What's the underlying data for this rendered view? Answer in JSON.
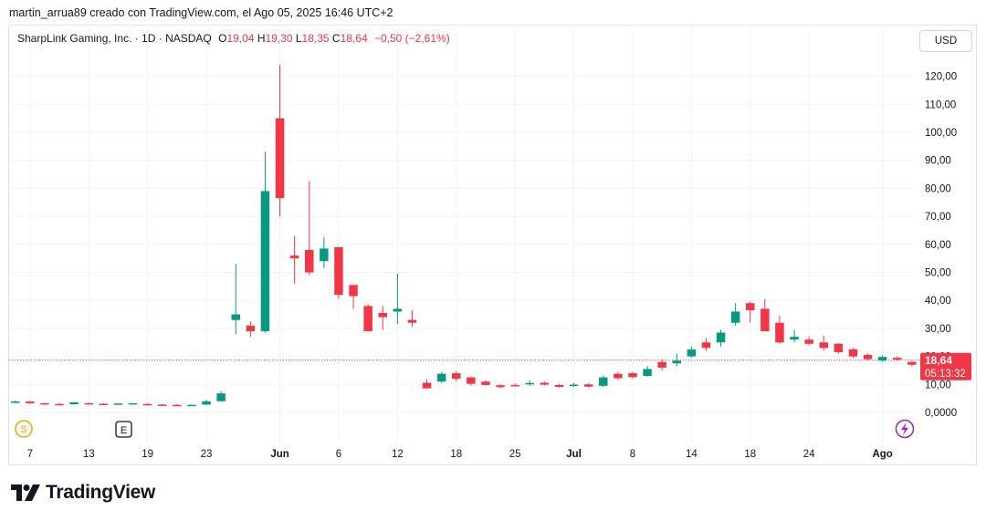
{
  "header": {
    "credit": "martin_arrua89 creado con TradingView.com, el Ago 05, 2025 16:46 UTC+2"
  },
  "legend": {
    "symbol": "SharpLink Gaming, Inc. · 1D · NASDAQ",
    "o_label": "O",
    "o_value": "19,04",
    "h_label": "H",
    "h_value": "19,30",
    "l_label": "L",
    "l_value": "18,35",
    "c_label": "C",
    "c_value": "18,64",
    "change": "−0,50 (−2,61%)"
  },
  "currency": "USD",
  "price_tag": {
    "price": "18,64",
    "countdown": "05:13:32"
  },
  "markers": {
    "s": "S",
    "e": "E"
  },
  "brand": {
    "name": "TradingView"
  },
  "colors": {
    "up": "#089981",
    "down": "#f23645",
    "grid": "#f0f3fa",
    "text": "#131722"
  },
  "icons": {
    "lightning": "lightning-icon",
    "logo": "tradingview-logo-icon"
  },
  "chart_data": {
    "type": "candlestick",
    "title": "SharpLink Gaming, Inc. · 1D · NASDAQ",
    "ylim": [
      0,
      125
    ],
    "y_ticks": [
      "0,0000",
      "10,00",
      "20,00",
      "30,00",
      "40,00",
      "50,00",
      "60,00",
      "70,00",
      "80,00",
      "90,00",
      "100,00",
      "110,00",
      "120,00"
    ],
    "x_ticks": [
      "7",
      "13",
      "19",
      "23",
      "Jun",
      "6",
      "12",
      "18",
      "25",
      "Jul",
      "8",
      "14",
      "18",
      "24",
      "Ago"
    ],
    "last_price": 18.64,
    "grid": true,
    "candles": [
      {
        "date": "2025-05-06",
        "o": 3.6,
        "h": 4.2,
        "l": 3.3,
        "c": 3.9
      },
      {
        "date": "2025-05-07",
        "o": 3.9,
        "h": 4.1,
        "l": 3.0,
        "c": 3.3
      },
      {
        "date": "2025-05-08",
        "o": 3.3,
        "h": 3.5,
        "l": 2.9,
        "c": 3.1
      },
      {
        "date": "2025-05-09",
        "o": 3.0,
        "h": 3.4,
        "l": 2.6,
        "c": 2.9
      },
      {
        "date": "2025-05-12",
        "o": 2.9,
        "h": 3.8,
        "l": 2.8,
        "c": 3.6
      },
      {
        "date": "2025-05-13",
        "o": 3.3,
        "h": 3.5,
        "l": 2.9,
        "c": 3.1
      },
      {
        "date": "2025-05-14",
        "o": 3.1,
        "h": 3.3,
        "l": 2.8,
        "c": 3.0
      },
      {
        "date": "2025-05-15",
        "o": 2.9,
        "h": 3.3,
        "l": 2.7,
        "c": 3.2
      },
      {
        "date": "2025-05-16",
        "o": 3.1,
        "h": 3.4,
        "l": 2.9,
        "c": 3.3
      },
      {
        "date": "2025-05-19",
        "o": 3.0,
        "h": 3.2,
        "l": 2.6,
        "c": 2.8
      },
      {
        "date": "2025-05-20",
        "o": 2.8,
        "h": 3.0,
        "l": 2.5,
        "c": 2.7
      },
      {
        "date": "2025-05-21",
        "o": 2.7,
        "h": 2.9,
        "l": 2.4,
        "c": 2.6
      },
      {
        "date": "2025-05-22",
        "o": 2.6,
        "h": 2.8,
        "l": 2.4,
        "c": 2.7
      },
      {
        "date": "2025-05-23",
        "o": 2.8,
        "h": 4.5,
        "l": 2.7,
        "c": 4.0
      },
      {
        "date": "2025-05-27",
        "o": 4.0,
        "h": 7.6,
        "l": 3.9,
        "c": 6.8
      },
      {
        "date": "2025-05-28",
        "o": 33.0,
        "h": 53.0,
        "l": 28.0,
        "c": 35.0
      },
      {
        "date": "2025-05-29",
        "o": 31.0,
        "h": 32.5,
        "l": 27.0,
        "c": 29.0
      },
      {
        "date": "2025-05-30",
        "o": 29.0,
        "h": 93.0,
        "l": 28.5,
        "c": 79.0
      },
      {
        "date": "2025-06-02",
        "o": 105.0,
        "h": 124.0,
        "l": 70.0,
        "c": 76.5
      },
      {
        "date": "2025-06-03",
        "o": 56.0,
        "h": 63.0,
        "l": 46.0,
        "c": 55.0
      },
      {
        "date": "2025-06-04",
        "o": 58.0,
        "h": 82.5,
        "l": 49.0,
        "c": 50.0
      },
      {
        "date": "2025-06-05",
        "o": 54.0,
        "h": 62.5,
        "l": 51.5,
        "c": 58.5
      },
      {
        "date": "2025-06-06",
        "o": 59.0,
        "h": 59.0,
        "l": 40.5,
        "c": 42.0
      },
      {
        "date": "2025-06-09",
        "o": 45.5,
        "h": 45.5,
        "l": 37.0,
        "c": 41.5
      },
      {
        "date": "2025-06-10",
        "o": 38.0,
        "h": 38.5,
        "l": 29.0,
        "c": 29.0
      },
      {
        "date": "2025-06-11",
        "o": 35.5,
        "h": 38.0,
        "l": 29.5,
        "c": 34.0
      },
      {
        "date": "2025-06-12",
        "o": 36.0,
        "h": 49.5,
        "l": 31.5,
        "c": 37.0
      },
      {
        "date": "2025-06-13",
        "o": 33.0,
        "h": 36.5,
        "l": 30.5,
        "c": 32.0
      },
      {
        "date": "2025-06-16",
        "o": 10.6,
        "h": 11.8,
        "l": 8.4,
        "c": 8.6
      },
      {
        "date": "2025-06-17",
        "o": 11.0,
        "h": 14.5,
        "l": 10.5,
        "c": 13.8
      },
      {
        "date": "2025-06-18",
        "o": 14.0,
        "h": 14.8,
        "l": 11.0,
        "c": 12.0
      },
      {
        "date": "2025-06-19",
        "o": 12.5,
        "h": 12.8,
        "l": 9.6,
        "c": 10.2
      },
      {
        "date": "2025-06-20",
        "o": 11.0,
        "h": 11.5,
        "l": 9.5,
        "c": 9.8
      },
      {
        "date": "2025-06-23",
        "o": 9.7,
        "h": 10.2,
        "l": 8.6,
        "c": 9.0
      },
      {
        "date": "2025-06-24",
        "o": 9.8,
        "h": 10.4,
        "l": 9.2,
        "c": 9.6
      },
      {
        "date": "2025-06-25",
        "o": 10.2,
        "h": 11.5,
        "l": 9.5,
        "c": 10.5
      },
      {
        "date": "2025-06-26",
        "o": 10.6,
        "h": 11.1,
        "l": 9.6,
        "c": 9.9
      },
      {
        "date": "2025-06-27",
        "o": 9.8,
        "h": 10.2,
        "l": 8.9,
        "c": 9.1
      },
      {
        "date": "2025-06-30",
        "o": 9.5,
        "h": 10.5,
        "l": 9.1,
        "c": 9.9
      },
      {
        "date": "2025-07-01",
        "o": 10.0,
        "h": 10.4,
        "l": 8.9,
        "c": 9.2
      },
      {
        "date": "2025-07-02",
        "o": 9.5,
        "h": 13.2,
        "l": 9.1,
        "c": 12.5
      },
      {
        "date": "2025-07-03",
        "o": 13.8,
        "h": 14.5,
        "l": 11.6,
        "c": 12.2
      },
      {
        "date": "2025-07-07",
        "o": 14.0,
        "h": 14.5,
        "l": 12.0,
        "c": 12.6
      },
      {
        "date": "2025-07-08",
        "o": 13.0,
        "h": 16.5,
        "l": 12.8,
        "c": 15.5
      },
      {
        "date": "2025-07-09",
        "o": 18.0,
        "h": 19.0,
        "l": 15.0,
        "c": 16.0
      },
      {
        "date": "2025-07-10",
        "o": 17.5,
        "h": 21.0,
        "l": 16.5,
        "c": 18.5
      },
      {
        "date": "2025-07-11",
        "o": 20.0,
        "h": 23.5,
        "l": 19.5,
        "c": 22.5
      },
      {
        "date": "2025-07-14",
        "o": 25.0,
        "h": 26.5,
        "l": 22.0,
        "c": 23.0
      },
      {
        "date": "2025-07-15",
        "o": 25.0,
        "h": 29.5,
        "l": 23.5,
        "c": 28.5
      },
      {
        "date": "2025-07-16",
        "o": 32.0,
        "h": 39.0,
        "l": 31.0,
        "c": 36.0
      },
      {
        "date": "2025-07-17",
        "o": 39.0,
        "h": 39.5,
        "l": 32.0,
        "c": 36.5
      },
      {
        "date": "2025-07-18",
        "o": 37.0,
        "h": 40.5,
        "l": 29.0,
        "c": 29.0
      },
      {
        "date": "2025-07-21",
        "o": 32.0,
        "h": 34.5,
        "l": 24.5,
        "c": 25.0
      },
      {
        "date": "2025-07-22",
        "o": 26.0,
        "h": 29.5,
        "l": 25.0,
        "c": 27.0
      },
      {
        "date": "2025-07-23",
        "o": 26.0,
        "h": 27.0,
        "l": 24.0,
        "c": 24.5
      },
      {
        "date": "2025-07-24",
        "o": 25.0,
        "h": 27.5,
        "l": 22.0,
        "c": 23.0
      },
      {
        "date": "2025-07-25",
        "o": 24.5,
        "h": 24.8,
        "l": 21.0,
        "c": 21.5
      },
      {
        "date": "2025-07-28",
        "o": 22.5,
        "h": 23.0,
        "l": 19.5,
        "c": 20.0
      },
      {
        "date": "2025-07-29",
        "o": 20.5,
        "h": 21.0,
        "l": 18.5,
        "c": 19.0
      },
      {
        "date": "2025-07-30",
        "o": 18.5,
        "h": 20.5,
        "l": 18.0,
        "c": 19.8
      },
      {
        "date": "2025-07-31",
        "o": 19.5,
        "h": 20.0,
        "l": 18.5,
        "c": 18.8
      },
      {
        "date": "2025-08-01",
        "o": 18.0,
        "h": 18.5,
        "l": 16.5,
        "c": 17.0
      },
      {
        "date": "2025-08-04",
        "o": 17.5,
        "h": 20.0,
        "l": 17.0,
        "c": 19.1
      },
      {
        "date": "2025-08-05",
        "o": 19.04,
        "h": 19.3,
        "l": 18.35,
        "c": 18.64
      }
    ]
  }
}
